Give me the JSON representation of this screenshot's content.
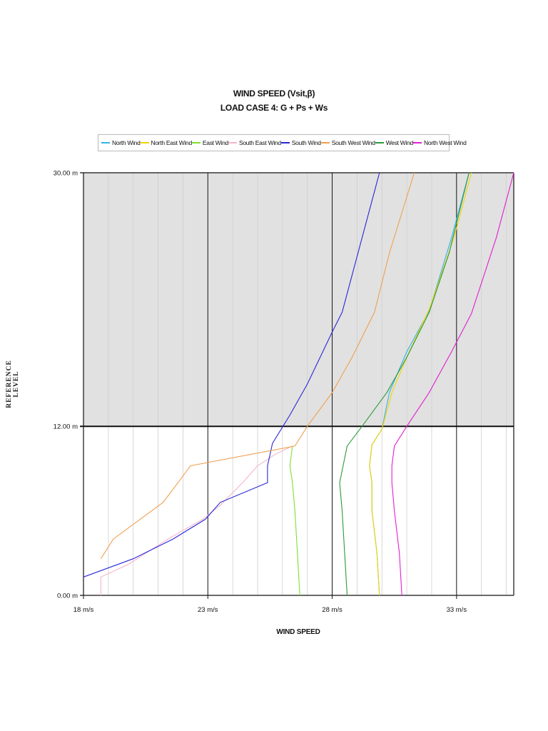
{
  "chart_data": {
    "type": "line",
    "title": "WIND SPEED (Vsit,β)",
    "subtitle": "LOAD CASE 4: G + Ps + Ws",
    "xlabel": "WIND SPEED",
    "ylabel": "REFERENCE LEVEL",
    "xlim": [
      18,
      35.3
    ],
    "ylim": [
      0,
      30
    ],
    "x_ticks": [
      {
        "value": 18,
        "label": "18 m/s"
      },
      {
        "value": 23,
        "label": "23 m/s"
      },
      {
        "value": 28,
        "label": "28 m/s"
      },
      {
        "value": 33,
        "label": "33 m/s"
      }
    ],
    "y_ticks": [
      {
        "value": 0,
        "label": "0.00 m"
      },
      {
        "value": 12,
        "label": "12.00 m"
      },
      {
        "value": 30,
        "label": "30.00 m"
      }
    ],
    "minor_x_gridlines": [
      19,
      20,
      21,
      22,
      24,
      25,
      26,
      27,
      29,
      30,
      31,
      32,
      34,
      35
    ],
    "shaded_band": {
      "from": 12,
      "to": 30,
      "color": "#e1e1e1"
    },
    "legend_position": "top",
    "grid": true,
    "series": [
      {
        "name": "North Wind",
        "color": "#33b5e5",
        "points": [
          [
            29.9,
            0
          ],
          [
            29.8,
            3
          ],
          [
            29.6,
            6
          ],
          [
            29.6,
            8
          ],
          [
            29.5,
            9.2
          ],
          [
            29.6,
            10.7
          ],
          [
            30.0,
            11.8
          ],
          [
            30.3,
            14.4
          ],
          [
            31.0,
            17.3
          ],
          [
            31.9,
            20.2
          ],
          [
            32.8,
            25.4
          ],
          [
            33.5,
            30
          ]
        ]
      },
      {
        "name": "North East Wind",
        "color": "#f2d400",
        "points": [
          [
            29.9,
            0
          ],
          [
            29.8,
            3
          ],
          [
            29.6,
            6
          ],
          [
            29.6,
            8
          ],
          [
            29.5,
            9.2
          ],
          [
            29.6,
            10.7
          ],
          [
            30.0,
            11.8
          ],
          [
            30.4,
            14.4
          ],
          [
            31.1,
            17.3
          ],
          [
            31.9,
            20.3
          ],
          [
            32.9,
            25.4
          ],
          [
            33.6,
            30
          ]
        ]
      },
      {
        "name": "East Wind",
        "color": "#7ee032",
        "points": [
          [
            26.7,
            0
          ],
          [
            26.6,
            3
          ],
          [
            26.5,
            6
          ],
          [
            26.4,
            8
          ],
          [
            26.3,
            9.2
          ],
          [
            26.4,
            10.6
          ]
        ]
      },
      {
        "name": "South East Wind",
        "color": "#f5b4c8",
        "points": [
          [
            18.7,
            0
          ],
          [
            18.7,
            1.3
          ],
          [
            19.8,
            2.2
          ],
          [
            21.4,
            4.0
          ],
          [
            22.8,
            5.4
          ],
          [
            23.5,
            6.4
          ],
          [
            24.4,
            8.0
          ],
          [
            25.0,
            9.2
          ],
          [
            25.7,
            10.0
          ],
          [
            26.4,
            10.6
          ]
        ]
      },
      {
        "name": "South Wind",
        "color": "#2828d8",
        "points": [
          [
            18.0,
            1.3
          ],
          [
            20.0,
            2.6
          ],
          [
            21.6,
            4.0
          ],
          [
            22.9,
            5.4
          ],
          [
            23.5,
            6.6
          ],
          [
            25.4,
            8.0
          ],
          [
            25.4,
            9.2
          ],
          [
            25.6,
            10.8
          ],
          [
            26.3,
            12.8
          ],
          [
            27.0,
            15.0
          ],
          [
            28.0,
            18.7
          ],
          [
            28.4,
            20.1
          ],
          [
            29.9,
            30
          ]
        ]
      },
      {
        "name": "South West Wind",
        "color": "#f0a050",
        "points": [
          [
            18.7,
            2.6
          ],
          [
            19.2,
            4.0
          ],
          [
            21.2,
            6.6
          ],
          [
            21.8,
            8.0
          ],
          [
            22.3,
            9.2
          ],
          [
            26.5,
            10.6
          ],
          [
            27.0,
            12.0
          ],
          [
            28.0,
            14.4
          ],
          [
            28.8,
            16.9
          ],
          [
            29.7,
            20.1
          ],
          [
            30.3,
            24.3
          ],
          [
            31.3,
            30
          ]
        ]
      },
      {
        "name": "West Wind",
        "color": "#2a9a3a",
        "points": [
          [
            28.6,
            0
          ],
          [
            28.5,
            3
          ],
          [
            28.4,
            6
          ],
          [
            28.3,
            8
          ],
          [
            28.6,
            10.6
          ],
          [
            29.2,
            12.0
          ],
          [
            30.2,
            14.4
          ],
          [
            31.0,
            16.9
          ],
          [
            31.9,
            20.1
          ],
          [
            32.7,
            24.3
          ],
          [
            33.5,
            30
          ]
        ]
      },
      {
        "name": "North West Wind",
        "color": "#e020d0",
        "points": [
          [
            30.8,
            0
          ],
          [
            30.7,
            3
          ],
          [
            30.5,
            6
          ],
          [
            30.4,
            8
          ],
          [
            30.4,
            9.2
          ],
          [
            30.5,
            10.6
          ],
          [
            31.0,
            12.0
          ],
          [
            31.9,
            14.4
          ],
          [
            32.8,
            17.3
          ],
          [
            33.6,
            20.0
          ],
          [
            34.6,
            25.4
          ],
          [
            35.3,
            30
          ]
        ]
      }
    ]
  }
}
